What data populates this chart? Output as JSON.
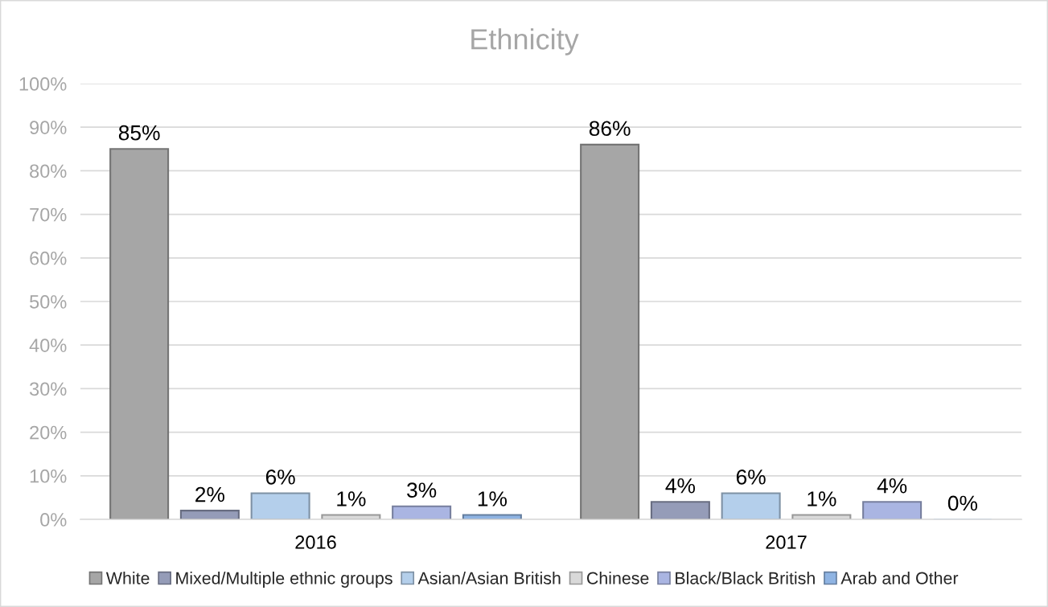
{
  "chart_data": {
    "type": "bar",
    "title": "Ethnicity",
    "categories": [
      "2016",
      "2017"
    ],
    "series": [
      {
        "name": "White",
        "color": "#a6a6a6",
        "values": [
          85,
          86
        ],
        "value_labels": [
          "85%",
          "86%"
        ]
      },
      {
        "name": "Mixed/Multiple ethnic groups",
        "color": "#959cb8",
        "values": [
          2,
          4
        ],
        "value_labels": [
          "2%",
          "4%"
        ]
      },
      {
        "name": "Asian/Asian British",
        "color": "#b4cfeb",
        "values": [
          6,
          6
        ],
        "value_labels": [
          "6%",
          "6%"
        ]
      },
      {
        "name": "Chinese",
        "color": "#d9d9d9",
        "values": [
          1,
          1
        ],
        "value_labels": [
          "1%",
          "1%"
        ]
      },
      {
        "name": "Black/Black British",
        "color": "#aab5e2",
        "values": [
          3,
          4
        ],
        "value_labels": [
          "3%",
          "4%"
        ]
      },
      {
        "name": "Arab and Other",
        "color": "#8fb4e3",
        "values": [
          1,
          0
        ],
        "value_labels": [
          "1%",
          "0%"
        ]
      }
    ],
    "ylim": [
      0,
      100
    ],
    "yticks": [
      {
        "value": 0,
        "label": "0%"
      },
      {
        "value": 10,
        "label": "10%"
      },
      {
        "value": 20,
        "label": "20%"
      },
      {
        "value": 30,
        "label": "30%"
      },
      {
        "value": 40,
        "label": "40%"
      },
      {
        "value": 50,
        "label": "50%"
      },
      {
        "value": 60,
        "label": "60%"
      },
      {
        "value": 70,
        "label": "70%"
      },
      {
        "value": 80,
        "label": "80%"
      },
      {
        "value": 90,
        "label": "90%"
      },
      {
        "value": 100,
        "label": "100%"
      }
    ],
    "grid": "y",
    "legend": "bottom"
  }
}
